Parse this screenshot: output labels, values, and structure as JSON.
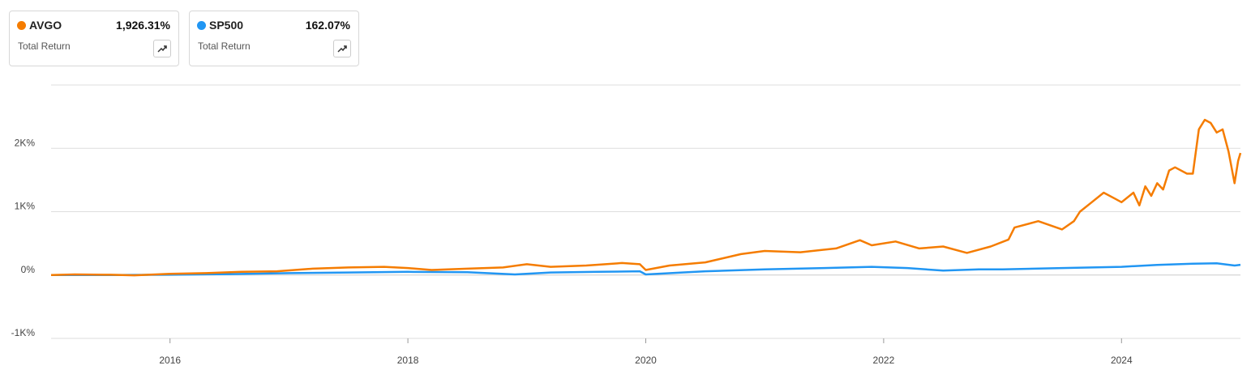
{
  "cards": [
    {
      "name": "AVGO",
      "value": "1,926.31%",
      "label": "Total Return",
      "color": "#f57c00"
    },
    {
      "name": "SP500",
      "value": "162.07%",
      "label": "Total Return",
      "color": "#2196f3"
    }
  ],
  "chart_data": {
    "type": "line",
    "xlim": [
      2015,
      2025
    ],
    "xticks": [
      2016,
      2018,
      2020,
      2022,
      2024
    ],
    "ylim": [
      -1000,
      3000
    ],
    "yticks": [
      {
        "value": -1000,
        "label": "-1K%"
      },
      {
        "value": 0,
        "label": "0%"
      },
      {
        "value": 1000,
        "label": "1K%"
      },
      {
        "value": 2000,
        "label": "2K%"
      }
    ],
    "grid": true,
    "series": [
      {
        "name": "AVGO",
        "color": "#f57c00",
        "x": [
          2015.0,
          2015.2,
          2015.5,
          2015.7,
          2016.0,
          2016.3,
          2016.6,
          2016.9,
          2017.2,
          2017.5,
          2017.8,
          2018.0,
          2018.2,
          2018.5,
          2018.8,
          2019.0,
          2019.2,
          2019.5,
          2019.8,
          2019.95,
          2020.0,
          2020.2,
          2020.5,
          2020.8,
          2021.0,
          2021.3,
          2021.6,
          2021.8,
          2021.9,
          2022.1,
          2022.3,
          2022.5,
          2022.7,
          2022.9,
          2023.05,
          2023.1,
          2023.3,
          2023.5,
          2023.6,
          2023.65,
          2023.75,
          2023.85,
          2023.95,
          2024.0,
          2024.1,
          2024.15,
          2024.2,
          2024.25,
          2024.3,
          2024.35,
          2024.4,
          2024.45,
          2024.55,
          2024.6,
          2024.65,
          2024.7,
          2024.75,
          2024.8,
          2024.85,
          2024.9,
          2024.95,
          2024.98,
          2025.0
        ],
        "values": [
          0,
          10,
          5,
          -5,
          20,
          30,
          50,
          60,
          100,
          120,
          130,
          110,
          80,
          100,
          120,
          170,
          130,
          150,
          190,
          170,
          80,
          150,
          200,
          330,
          380,
          360,
          420,
          550,
          470,
          530,
          420,
          450,
          350,
          450,
          560,
          750,
          850,
          720,
          850,
          1000,
          1150,
          1300,
          1200,
          1150,
          1300,
          1100,
          1400,
          1250,
          1450,
          1350,
          1650,
          1700,
          1600,
          1600,
          2300,
          2450,
          2400,
          2250,
          2300,
          1950,
          1450,
          1800,
          1926.31
        ]
      },
      {
        "name": "SP500",
        "color": "#2196f3",
        "x": [
          2015.0,
          2015.5,
          2016.0,
          2016.5,
          2017.0,
          2017.5,
          2018.0,
          2018.5,
          2018.9,
          2019.2,
          2019.6,
          2019.95,
          2020.0,
          2020.5,
          2021.0,
          2021.5,
          2021.9,
          2022.2,
          2022.5,
          2022.8,
          2023.0,
          2023.5,
          2024.0,
          2024.3,
          2024.6,
          2024.8,
          2024.95,
          2025.0
        ],
        "values": [
          0,
          0,
          5,
          15,
          30,
          40,
          50,
          45,
          10,
          40,
          50,
          60,
          10,
          60,
          90,
          110,
          130,
          110,
          70,
          90,
          90,
          110,
          130,
          160,
          180,
          185,
          150,
          162.07
        ]
      }
    ]
  }
}
